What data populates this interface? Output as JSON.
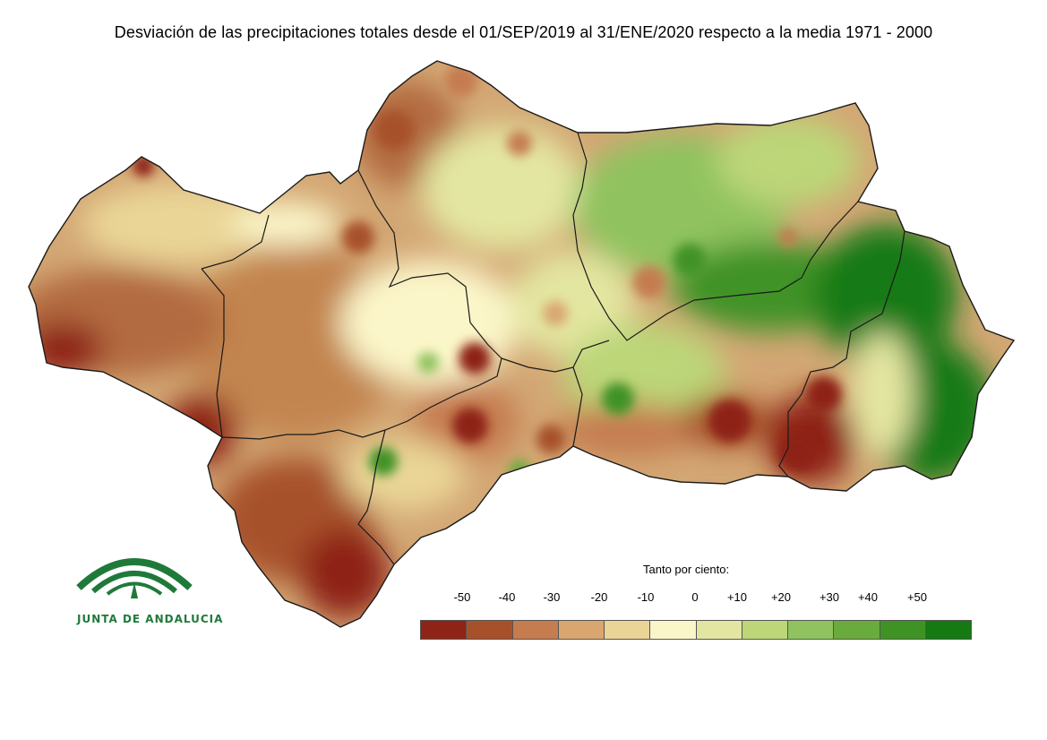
{
  "title": "Desviación de las precipitaciones totales desde el 01/SEP/2019 al 31/ENE/2020 respecto a la media 1971 - 2000",
  "legend": {
    "title": "Tanto por ciento:",
    "ticks": [
      "-50",
      "-40",
      "-30",
      "-20",
      "-10",
      "0",
      "+10",
      "+20",
      "+30",
      "+40",
      "+50"
    ],
    "colors": [
      "#8e2417",
      "#a7512b",
      "#c57c4f",
      "#d9a670",
      "#ead596",
      "#fbf6c9",
      "#e3e6a0",
      "#bcd678",
      "#90c35f",
      "#6aab3d",
      "#3f9325",
      "#157a12"
    ]
  },
  "logo": {
    "text": "JUNTA DE ANDALUCIA",
    "color": "#1f7a3a"
  },
  "map": {
    "region": "Andalucía",
    "boundary_color": "#1a1a1a"
  }
}
